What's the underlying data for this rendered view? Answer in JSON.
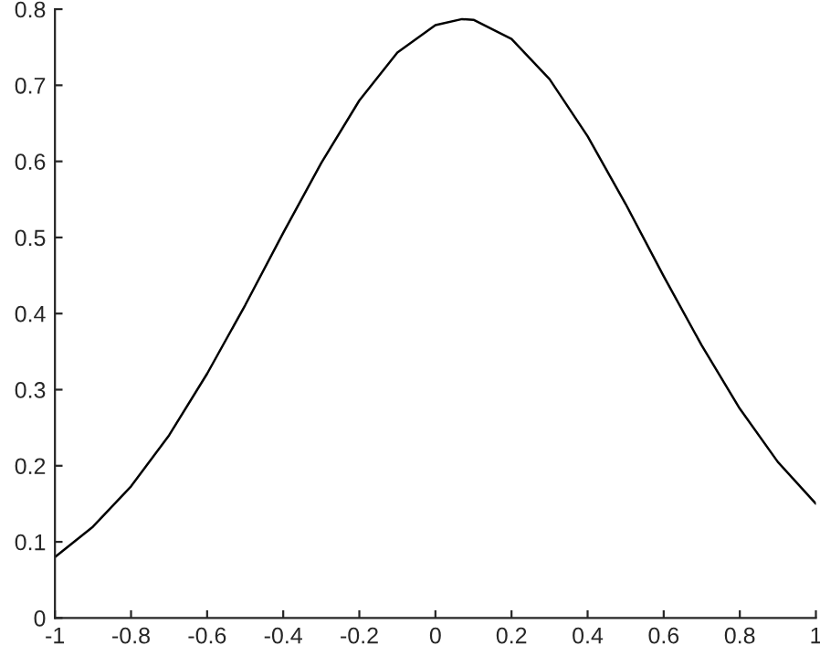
{
  "chart_data": {
    "type": "line",
    "x": [
      -1,
      -0.9,
      -0.8,
      -0.7,
      -0.6,
      -0.5,
      -0.4,
      -0.3,
      -0.2,
      -0.1,
      0,
      0.07,
      0.1,
      0.2,
      0.3,
      0.4,
      0.5,
      0.6,
      0.7,
      0.8,
      0.9,
      1
    ],
    "series": [
      {
        "color": "#000000",
        "values": [
          0.08,
          0.12,
          0.173,
          0.24,
          0.321,
          0.411,
          0.506,
          0.598,
          0.68,
          0.743,
          0.779,
          0.787,
          0.786,
          0.761,
          0.708,
          0.633,
          0.544,
          0.449,
          0.358,
          0.275,
          0.205,
          0.15
        ]
      }
    ],
    "xlim": [
      -1,
      1
    ],
    "ylim": [
      0,
      0.8
    ],
    "xticks": [
      -1,
      -0.8,
      -0.6,
      -0.4,
      -0.2,
      0,
      0.2,
      0.4,
      0.6,
      0.8,
      1
    ],
    "yticks": [
      0,
      0.1,
      0.2,
      0.3,
      0.4,
      0.5,
      0.6,
      0.7,
      0.8
    ],
    "grid": false,
    "legend": false,
    "marker": "none",
    "line_style": "solid"
  }
}
